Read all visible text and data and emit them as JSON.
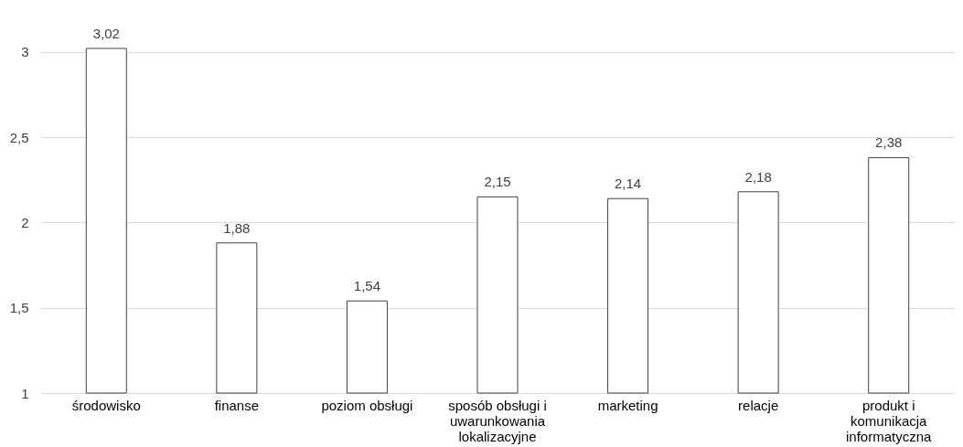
{
  "chart_data": {
    "type": "bar",
    "categories": [
      "środowisko",
      "finanse",
      "poziom obsługi",
      "sposób obsługi i uwarunkowania lokalizacyjne",
      "marketing",
      "relacje",
      "produkt i komunikacja informatyczna"
    ],
    "values": [
      3.02,
      1.88,
      1.54,
      2.15,
      2.14,
      2.18,
      2.38
    ],
    "value_labels": [
      "3,02",
      "1,88",
      "1,54",
      "2,15",
      "2,14",
      "2,18",
      "2,38"
    ],
    "color": "#ffffff",
    "ylim": [
      1,
      3.02
    ],
    "yticks": [
      1,
      {
        "value": 1.5,
        "label": "1,5"
      },
      2,
      {
        "value": 2.5,
        "label": "2,5"
      },
      3
    ],
    "grid": "y"
  }
}
